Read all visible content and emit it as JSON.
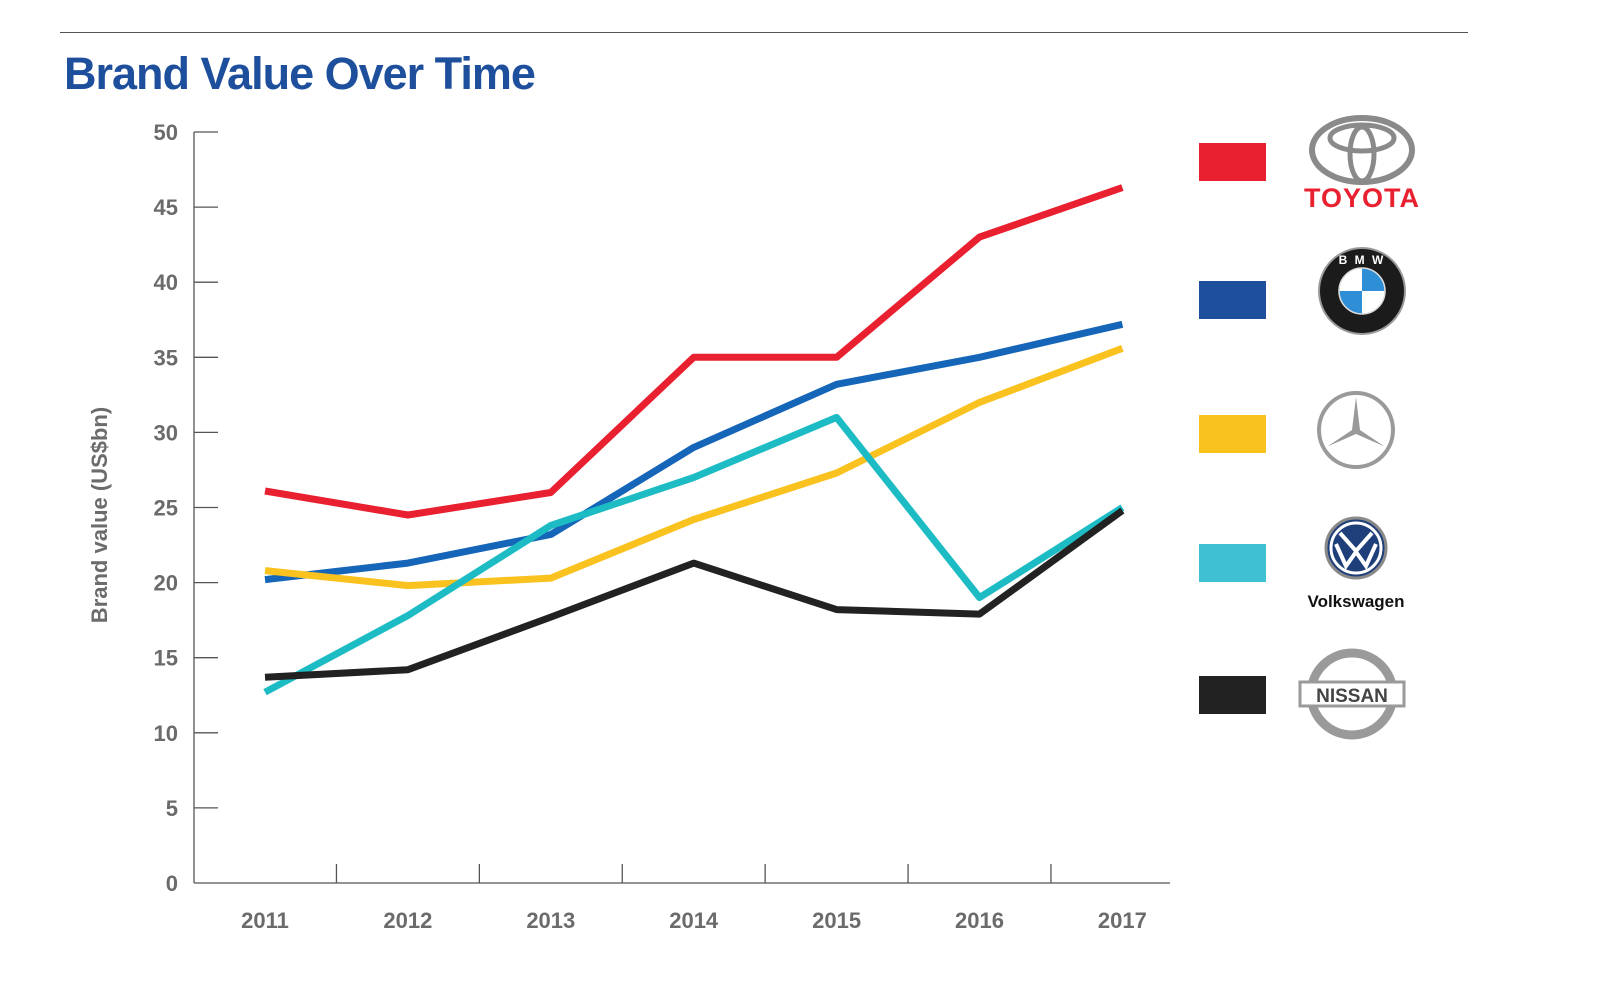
{
  "chart_data": {
    "type": "line",
    "title": "Brand Value Over Time",
    "xlabel": "",
    "ylabel": "Brand value (US$bn)",
    "ylim": [
      0,
      50
    ],
    "yticks": [
      0,
      5,
      10,
      15,
      20,
      25,
      30,
      35,
      40,
      45,
      50
    ],
    "categories": [
      "2011",
      "2012",
      "2013",
      "2014",
      "2015",
      "2016",
      "2017"
    ],
    "grid": false,
    "legend_placement": "right",
    "series": [
      {
        "key": "toyota",
        "color": "#e8202f",
        "values": [
          26.1,
          24.5,
          26.0,
          35.0,
          35.0,
          43.0,
          46.3
        ]
      },
      {
        "key": "bmw",
        "color": "#1565b8",
        "values": [
          20.2,
          21.3,
          23.2,
          29.0,
          33.2,
          35.0,
          37.2
        ]
      },
      {
        "key": "mercedes",
        "color": "#f9c21f",
        "values": [
          20.8,
          19.8,
          20.3,
          24.2,
          27.3,
          32.0,
          35.6
        ]
      },
      {
        "key": "volkswagen",
        "color": "#1dbcc4",
        "values": [
          12.7,
          17.8,
          23.8,
          27.0,
          31.0,
          19.0,
          25.0
        ]
      },
      {
        "key": "nissan",
        "color": "#222222",
        "values": [
          13.7,
          14.2,
          17.7,
          21.3,
          18.2,
          17.9,
          24.8
        ]
      }
    ]
  },
  "legend": [
    {
      "key": "toyota",
      "color": "#e8202f",
      "logo_icon": "toyota-logo-icon",
      "logo_text": "TOYOTA"
    },
    {
      "key": "bmw",
      "color": "#1e4f9c",
      "logo_icon": "bmw-logo-icon",
      "logo_text": "B M W"
    },
    {
      "key": "mercedes",
      "color": "#f9c21f",
      "logo_icon": "mercedes-benz-logo-icon",
      "logo_text": ""
    },
    {
      "key": "volkswagen",
      "color": "#3fc1d3",
      "logo_icon": "volkswagen-logo-icon",
      "logo_text": "Volkswagen"
    },
    {
      "key": "nissan",
      "color": "#222222",
      "logo_icon": "nissan-logo-icon",
      "logo_text": "NISSAN"
    }
  ]
}
